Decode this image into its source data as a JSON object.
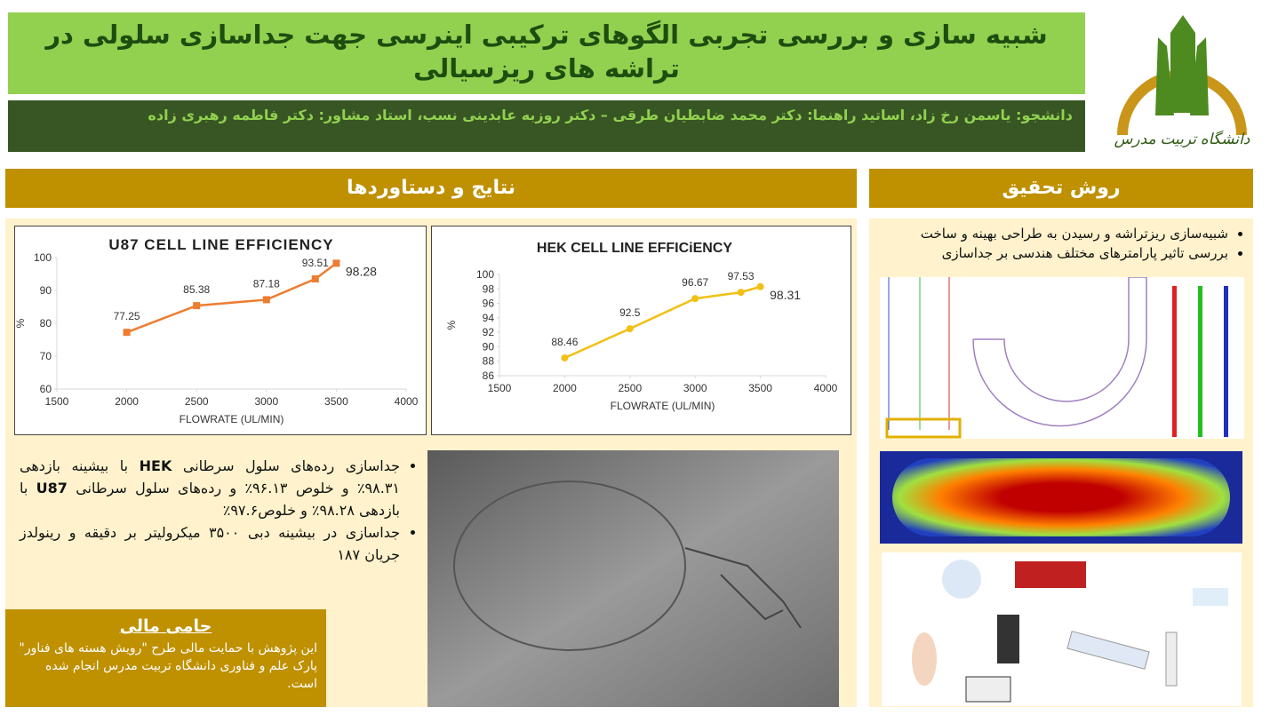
{
  "header": {
    "title": "شبیه سازی و بررسی تجربی الگوهای ترکیبی اینرسی جهت جداسازی سلولی در تراشه های ریزسیالی",
    "authors": "دانشجو: یاسمن رخ زاد، اساتید راهنما: دکتر محمد ضابطیان طرقی – دکتر روزبه عابدینی نسب، استاد مشاور: دکتر فاطمه رهبری زاده",
    "logo_text": "دانشگاه تربیت مدرس"
  },
  "results": {
    "heading": "نتایج و دستاوردها",
    "bullets": [
      [
        "جداسازی رده‌های سلول سرطانی ",
        "HEK",
        " با بیشینه بازدهی ۹۸.۳۱٪ و خلوص ۹۶.۱۳٪ و رده‌های سلول سرطانی ",
        "U87",
        " با بازدهی ۹۸.۲۸٪ و خلوص۹۷.۶٪"
      ],
      [
        "جداسازی در بیشینه دبی ۳۵۰۰ میکرولیتر بر دقیقه و رینولدز جریان ۱۸۷"
      ]
    ]
  },
  "charts": [
    {
      "type": "line",
      "title": "U87 CELL LINE EFFICIENCY",
      "xlabel": "FLOWRATE (UL/MIN)",
      "ylabel": "%",
      "x": [
        2000,
        2500,
        3000,
        3350,
        3500
      ],
      "values": [
        77.25,
        85.38,
        87.18,
        93.51,
        98.28
      ],
      "color": "#ed7d31",
      "marker": "square",
      "xlim": [
        1500,
        4000
      ],
      "xticks": [
        1500,
        2000,
        2500,
        3000,
        3500,
        4000
      ],
      "ylim": [
        60,
        100
      ],
      "yticks": [
        60,
        70,
        80,
        90,
        100
      ]
    },
    {
      "type": "line",
      "title": "HEK CELL LINE EFFICiENCY",
      "xlabel": "FLOWRATE (UL/MIN)",
      "ylabel": "%",
      "x": [
        2000,
        2500,
        3000,
        3350,
        3500
      ],
      "values": [
        88.46,
        92.5,
        96.67,
        97.53,
        98.31
      ],
      "color": "#f2c014",
      "marker": "circle",
      "xlim": [
        1500,
        4000
      ],
      "xticks": [
        1500,
        2000,
        2500,
        3000,
        3500,
        4000
      ],
      "ylim": [
        86,
        100
      ],
      "yticks": [
        86,
        88,
        90,
        92,
        94,
        96,
        98,
        100
      ]
    }
  ],
  "methods": {
    "heading": "روش تحقیق",
    "bullets": [
      "شبیه‌سازی ریزتراشه و رسیدن به طراحی بهینه و ساخت",
      "بررسی تاثیر پارامترهای مختلف هندسی بر جداسازی"
    ]
  },
  "sponsor": {
    "heading": "حامی مالی",
    "text": "این پژوهش با حمایت مالی طرح \"رویش هسته های فناور\" پارک علم و فناوری دانشگاه تربیت مدرس انجام شده است."
  }
}
